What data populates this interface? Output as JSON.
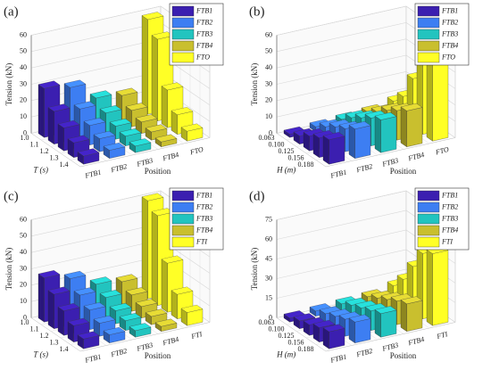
{
  "chart_data": [
    {
      "type": "bar3d",
      "panel_label": "(a)",
      "ylabel": "Tension (kN)",
      "xlabel": "T (s)",
      "position_label": "Position",
      "categories": [
        "1.0",
        "1.1",
        "1.2",
        "1.3",
        "1.4"
      ],
      "ylim": [
        0,
        60
      ],
      "yticks": [
        0,
        10,
        20,
        30,
        40,
        50,
        60
      ],
      "series": [
        {
          "name": "FTB1",
          "color": "#3b1fb0",
          "values": [
            30,
            20,
            14,
            9,
            5
          ]
        },
        {
          "name": "FTB2",
          "color": "#3d7ef2",
          "values": [
            27,
            18,
            12,
            8,
            5
          ]
        },
        {
          "name": "FTB3",
          "color": "#22c4bf",
          "values": [
            17,
            12,
            8,
            6,
            4
          ]
        },
        {
          "name": "FTB4",
          "color": "#c9bf2e",
          "values": [
            15,
            10,
            7,
            5,
            3
          ]
        },
        {
          "name": "FTO",
          "color": "#ffff26",
          "values": [
            58,
            50,
            23,
            12,
            6
          ]
        }
      ]
    },
    {
      "type": "bar3d",
      "panel_label": "(b)",
      "ylabel": "Tension (kN)",
      "xlabel": "H (m)",
      "position_label": "Position",
      "categories": [
        "0.063",
        "0.100",
        "0.125",
        "0.156",
        "0.188"
      ],
      "ylim": [
        0,
        60
      ],
      "yticks": [
        0,
        10,
        20,
        30,
        40,
        50,
        60
      ],
      "series": [
        {
          "name": "FTB1",
          "color": "#3b1fb0",
          "values": [
            2,
            5,
            9,
            12,
            15
          ]
        },
        {
          "name": "FTB2",
          "color": "#3d7ef2",
          "values": [
            3,
            7,
            11,
            14,
            18
          ]
        },
        {
          "name": "FTB3",
          "color": "#22c4bf",
          "values": [
            4,
            9,
            13,
            17,
            20
          ]
        },
        {
          "name": "FTB4",
          "color": "#c9bf2e",
          "values": [
            5,
            9,
            14,
            18,
            22
          ]
        },
        {
          "name": "FTO",
          "color": "#ffff26",
          "values": [
            8,
            15,
            30,
            45,
            50
          ]
        }
      ]
    },
    {
      "type": "bar3d",
      "panel_label": "(c)",
      "ylabel": "Tension (kN)",
      "xlabel": "T (s)",
      "position_label": "Position",
      "categories": [
        "1.0",
        "1.1",
        "1.2",
        "1.3",
        "1.4"
      ],
      "ylim": [
        0,
        60
      ],
      "yticks": [
        0,
        10,
        20,
        30,
        40,
        50,
        60
      ],
      "series": [
        {
          "name": "FTB1",
          "color": "#3b1fb0",
          "values": [
            27,
            21,
            15,
            10,
            6
          ]
        },
        {
          "name": "FTB2",
          "color": "#3d7ef2",
          "values": [
            23,
            17,
            12,
            8,
            5
          ]
        },
        {
          "name": "FTB3",
          "color": "#22c4bf",
          "values": [
            16,
            12,
            8,
            6,
            4
          ]
        },
        {
          "name": "FTB4",
          "color": "#c9bf2e",
          "values": [
            14,
            10,
            7,
            5,
            3
          ]
        },
        {
          "name": "FTI",
          "color": "#ffff26",
          "values": [
            60,
            55,
            30,
            15,
            8
          ]
        }
      ]
    },
    {
      "type": "bar3d",
      "panel_label": "(d)",
      "ylabel": "Tension (kN)",
      "xlabel": "H (m)",
      "position_label": "Position",
      "categories": [
        "0.063",
        "0.100",
        "0.125",
        "0.156",
        "0.188"
      ],
      "ylim": [
        0,
        75
      ],
      "yticks": [
        0,
        15,
        30,
        45,
        60,
        75
      ],
      "series": [
        {
          "name": "FTB1",
          "color": "#3b1fb0",
          "values": [
            3,
            6,
            8,
            11,
            13
          ]
        },
        {
          "name": "FTB2",
          "color": "#3d7ef2",
          "values": [
            4,
            7,
            10,
            13,
            16
          ]
        },
        {
          "name": "FTB3",
          "color": "#22c4bf",
          "values": [
            5,
            9,
            12,
            15,
            18
          ]
        },
        {
          "name": "FTB4",
          "color": "#c9bf2e",
          "values": [
            6,
            10,
            14,
            18,
            21
          ]
        },
        {
          "name": "FTI",
          "color": "#ffff26",
          "values": [
            10,
            20,
            35,
            50,
            55
          ]
        }
      ]
    }
  ]
}
